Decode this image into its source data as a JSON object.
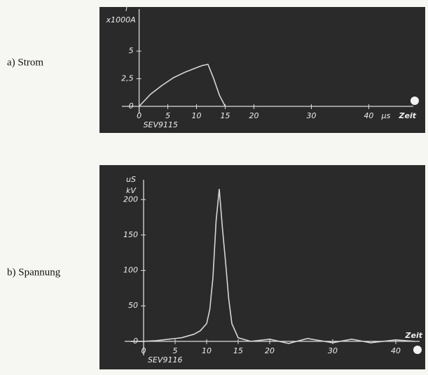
{
  "chart_data": [
    {
      "type": "line",
      "label": "a) Strom",
      "ylabel": "i",
      "yunit": "x1000A",
      "xlabel": "Zeit",
      "xunit": "µs",
      "annotation": "SEV9115",
      "x": [
        0,
        2,
        4,
        6,
        8,
        10,
        11,
        12,
        13,
        14,
        15
      ],
      "series": [
        {
          "name": "Strom",
          "color": "#d6d6d6",
          "values": [
            0,
            1.1,
            1.9,
            2.6,
            3.1,
            3.5,
            3.7,
            3.8,
            2.5,
            1.0,
            0
          ]
        }
      ],
      "xlim": [
        -3,
        48
      ],
      "ylim": [
        0,
        8.3
      ],
      "xticks": [
        0,
        5,
        10,
        15,
        20,
        30,
        40
      ],
      "yticks": [
        0,
        {
          "value": 2.5,
          "label": "2,5"
        },
        5
      ]
    },
    {
      "type": "line",
      "label": "b) Spannung",
      "ylabel": "uS",
      "yunit": "kV",
      "xlabel": "Zeit",
      "annotation": "SEV9116",
      "x": [
        -2,
        0,
        2,
        4,
        6,
        8,
        9,
        10,
        10.5,
        11,
        11.5,
        12,
        12.5,
        13,
        13.5,
        14,
        15,
        17,
        20,
        23,
        26,
        30,
        33,
        36,
        40,
        43
      ],
      "series": [
        {
          "name": "Spannung",
          "color": "#d6d6d6",
          "values": [
            0,
            0,
            1,
            3,
            5,
            10,
            15,
            25,
            45,
            90,
            170,
            215,
            160,
            112,
            60,
            25,
            5,
            0,
            3,
            -3,
            4,
            -2,
            3,
            -2,
            2,
            0
          ]
        }
      ],
      "xlim": [
        -3,
        44
      ],
      "ylim": [
        -10,
        220
      ],
      "xticks": [
        0,
        5,
        10,
        15,
        20,
        30,
        40
      ],
      "yticks": [
        0,
        50,
        100,
        150,
        200
      ]
    }
  ]
}
